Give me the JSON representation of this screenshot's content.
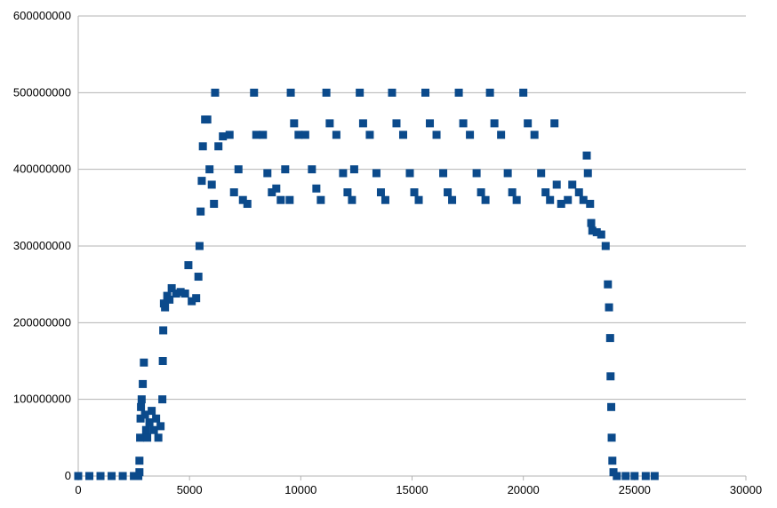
{
  "chart_data": {
    "type": "scatter",
    "title": "",
    "xlabel": "",
    "ylabel": "",
    "xlim": [
      0,
      30000
    ],
    "ylim": [
      0,
      600000000
    ],
    "x_ticks": [
      "0",
      "5000",
      "10000",
      "15000",
      "20000",
      "25000",
      "30000"
    ],
    "y_ticks": [
      "0",
      "100000000",
      "200000000",
      "300000000",
      "400000000",
      "500000000",
      "600000000"
    ],
    "grid": "horizontal",
    "legend": "none",
    "marker": "square",
    "series_color": "#0b4a8b",
    "grid_color": "#b3b3b3",
    "series": [
      {
        "points": [
          [
            0,
            0
          ],
          [
            500,
            0
          ],
          [
            1000,
            0
          ],
          [
            1500,
            0
          ],
          [
            2000,
            0
          ],
          [
            2500,
            0
          ],
          [
            2700,
            0
          ],
          [
            2750,
            5000000
          ],
          [
            2750,
            20000000
          ],
          [
            2780,
            50000000
          ],
          [
            2800,
            75000000
          ],
          [
            2820,
            90000000
          ],
          [
            2850,
            100000000
          ],
          [
            2900,
            120000000
          ],
          [
            2950,
            148000000
          ],
          [
            3000,
            80000000
          ],
          [
            3050,
            60000000
          ],
          [
            3100,
            50000000
          ],
          [
            3200,
            70000000
          ],
          [
            3300,
            85000000
          ],
          [
            3400,
            60000000
          ],
          [
            3500,
            75000000
          ],
          [
            3600,
            50000000
          ],
          [
            3700,
            65000000
          ],
          [
            3780,
            100000000
          ],
          [
            3800,
            150000000
          ],
          [
            3820,
            190000000
          ],
          [
            3850,
            225000000
          ],
          [
            3900,
            220000000
          ],
          [
            4000,
            235000000
          ],
          [
            4100,
            230000000
          ],
          [
            4200,
            245000000
          ],
          [
            4400,
            238000000
          ],
          [
            4600,
            240000000
          ],
          [
            4800,
            238000000
          ],
          [
            4950,
            275000000
          ],
          [
            5100,
            228000000
          ],
          [
            5300,
            232000000
          ],
          [
            5400,
            260000000
          ],
          [
            5450,
            300000000
          ],
          [
            5500,
            345000000
          ],
          [
            5550,
            385000000
          ],
          [
            5600,
            430000000
          ],
          [
            5700,
            465000000
          ],
          [
            5800,
            465000000
          ],
          [
            5900,
            400000000
          ],
          [
            6000,
            380000000
          ],
          [
            6100,
            355000000
          ],
          [
            6150,
            500000000
          ],
          [
            6300,
            430000000
          ],
          [
            6500,
            443000000
          ],
          [
            6800,
            445000000
          ],
          [
            7000,
            370000000
          ],
          [
            7200,
            400000000
          ],
          [
            7400,
            360000000
          ],
          [
            7600,
            355000000
          ],
          [
            7900,
            500000000
          ],
          [
            8000,
            445000000
          ],
          [
            8300,
            445000000
          ],
          [
            8500,
            395000000
          ],
          [
            8700,
            370000000
          ],
          [
            8900,
            375000000
          ],
          [
            9100,
            360000000
          ],
          [
            9300,
            400000000
          ],
          [
            9500,
            360000000
          ],
          [
            9550,
            500000000
          ],
          [
            9700,
            460000000
          ],
          [
            9900,
            445000000
          ],
          [
            10200,
            445000000
          ],
          [
            10500,
            400000000
          ],
          [
            10700,
            375000000
          ],
          [
            10900,
            360000000
          ],
          [
            11150,
            500000000
          ],
          [
            11300,
            460000000
          ],
          [
            11600,
            445000000
          ],
          [
            11900,
            395000000
          ],
          [
            12100,
            370000000
          ],
          [
            12300,
            360000000
          ],
          [
            12400,
            400000000
          ],
          [
            12650,
            500000000
          ],
          [
            12800,
            460000000
          ],
          [
            13100,
            445000000
          ],
          [
            13400,
            395000000
          ],
          [
            13600,
            370000000
          ],
          [
            13800,
            360000000
          ],
          [
            14100,
            500000000
          ],
          [
            14300,
            460000000
          ],
          [
            14600,
            445000000
          ],
          [
            14900,
            395000000
          ],
          [
            15100,
            370000000
          ],
          [
            15300,
            360000000
          ],
          [
            15600,
            500000000
          ],
          [
            15800,
            460000000
          ],
          [
            16100,
            445000000
          ],
          [
            16400,
            395000000
          ],
          [
            16600,
            370000000
          ],
          [
            16800,
            360000000
          ],
          [
            17100,
            500000000
          ],
          [
            17300,
            460000000
          ],
          [
            17600,
            445000000
          ],
          [
            17900,
            395000000
          ],
          [
            18100,
            370000000
          ],
          [
            18300,
            360000000
          ],
          [
            18500,
            500000000
          ],
          [
            18700,
            460000000
          ],
          [
            19000,
            445000000
          ],
          [
            19300,
            395000000
          ],
          [
            19500,
            370000000
          ],
          [
            19700,
            360000000
          ],
          [
            20000,
            500000000
          ],
          [
            20200,
            460000000
          ],
          [
            20500,
            445000000
          ],
          [
            20800,
            395000000
          ],
          [
            21000,
            370000000
          ],
          [
            21200,
            360000000
          ],
          [
            21400,
            460000000
          ],
          [
            21500,
            380000000
          ],
          [
            21700,
            355000000
          ],
          [
            22000,
            360000000
          ],
          [
            22200,
            380000000
          ],
          [
            22500,
            370000000
          ],
          [
            22700,
            360000000
          ],
          [
            22850,
            418000000
          ],
          [
            22900,
            395000000
          ],
          [
            23000,
            355000000
          ],
          [
            23050,
            330000000
          ],
          [
            23100,
            320000000
          ],
          [
            23300,
            318000000
          ],
          [
            23500,
            315000000
          ],
          [
            23700,
            300000000
          ],
          [
            23800,
            250000000
          ],
          [
            23850,
            220000000
          ],
          [
            23900,
            180000000
          ],
          [
            23920,
            130000000
          ],
          [
            23950,
            90000000
          ],
          [
            23970,
            50000000
          ],
          [
            24000,
            20000000
          ],
          [
            24050,
            5000000
          ],
          [
            24200,
            0
          ],
          [
            24600,
            0
          ],
          [
            25000,
            0
          ],
          [
            25500,
            0
          ],
          [
            25900,
            0
          ]
        ]
      }
    ]
  }
}
